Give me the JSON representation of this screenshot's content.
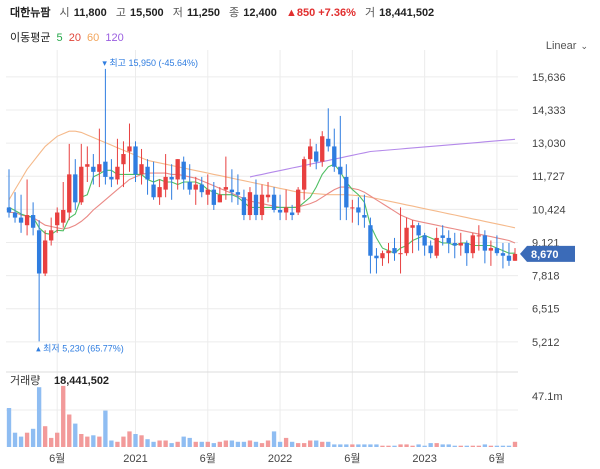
{
  "header": {
    "name": "대한뉴팜",
    "open_label": "시",
    "open": "11,800",
    "high_label": "고",
    "high": "15,500",
    "low_label": "저",
    "low": "11,250",
    "close_label": "종",
    "close": "12,400",
    "change": "▲850 +7.36%",
    "volume_label": "거",
    "volume": "18,441,502"
  },
  "moving_average": {
    "label": "이동평균",
    "periods": [
      {
        "name": "5",
        "color": "#26a84a"
      },
      {
        "name": "20",
        "color": "#e0453a"
      },
      {
        "name": "60",
        "color": "#f2a55c"
      },
      {
        "name": "120",
        "color": "#9b5fe0"
      }
    ]
  },
  "scale_mode": "Linear",
  "colors": {
    "up": "#e84040",
    "down": "#2f7de0",
    "vol_up": "#f29a9a",
    "vol_down": "#8fbdf2",
    "current_tag": "#3b6bb8"
  },
  "chart_data": {
    "type": "candlestick",
    "y_ticks": [
      "15,636",
      "14,333",
      "13,030",
      "11,727",
      "10,424",
      "9,121",
      "7,818",
      "6,515",
      "5,212"
    ],
    "y_range": [
      4300,
      16300
    ],
    "x_ticks": [
      "6월",
      "2021",
      "6월",
      "2022",
      "6월",
      "2023",
      "6월"
    ],
    "x_tick_positions": [
      8,
      21,
      33,
      45,
      57,
      69,
      81
    ],
    "current_price": "8,670",
    "annotations": {
      "high": {
        "text": "최고 15,950 (-45.64%)",
        "value": 15950,
        "index": 16
      },
      "low": {
        "text": "최저 5,230 (65.77%)",
        "value": 5230,
        "index": 5
      }
    },
    "candles": [
      [
        10500,
        12000,
        10100,
        10300
      ],
      [
        10300,
        11100,
        9900,
        10100
      ],
      [
        10100,
        11000,
        9500,
        9900
      ],
      [
        9800,
        11600,
        9400,
        10200
      ],
      [
        10200,
        10700,
        9400,
        9700
      ],
      [
        9600,
        10000,
        5230,
        7900
      ],
      [
        7900,
        9600,
        7800,
        9200
      ],
      [
        9200,
        10100,
        9000,
        9600
      ],
      [
        9800,
        10500,
        9500,
        10300
      ],
      [
        9900,
        11500,
        9700,
        10400
      ],
      [
        10300,
        13000,
        10000,
        11800
      ],
      [
        11800,
        12400,
        10400,
        10700
      ],
      [
        10700,
        13000,
        10600,
        12100
      ],
      [
        12100,
        12900,
        11500,
        12200
      ],
      [
        12100,
        12600,
        11400,
        11900
      ],
      [
        11900,
        13600,
        11300,
        12200
      ],
      [
        12300,
        15950,
        11400,
        11700
      ],
      [
        11700,
        12400,
        11300,
        11600
      ],
      [
        11600,
        13200,
        11400,
        12100
      ],
      [
        12200,
        13100,
        11300,
        12600
      ],
      [
        12700,
        13800,
        11900,
        12900
      ],
      [
        12900,
        13100,
        11500,
        11800
      ],
      [
        11800,
        12800,
        11400,
        12200
      ],
      [
        12100,
        12400,
        11000,
        11600
      ],
      [
        11400,
        12300,
        10800,
        10900
      ],
      [
        10900,
        11600,
        10600,
        11300
      ],
      [
        11200,
        12600,
        10900,
        11700
      ],
      [
        11700,
        12200,
        10800,
        11600
      ],
      [
        11600,
        12400,
        11200,
        12400
      ],
      [
        12300,
        12500,
        11200,
        11600
      ],
      [
        11500,
        12200,
        11000,
        11200
      ],
      [
        11200,
        11700,
        10600,
        11400
      ],
      [
        11400,
        11700,
        10900,
        11100
      ],
      [
        11000,
        11800,
        10600,
        11200
      ],
      [
        11200,
        11500,
        10400,
        10600
      ],
      [
        10700,
        11300,
        10700,
        11000
      ],
      [
        11200,
        12500,
        10800,
        11300
      ],
      [
        11200,
        12000,
        10700,
        11100
      ],
      [
        11100,
        11800,
        10600,
        11000
      ],
      [
        10900,
        11200,
        10000,
        10200
      ],
      [
        10200,
        11300,
        10000,
        11100
      ],
      [
        11000,
        11600,
        10000,
        10200
      ],
      [
        10200,
        11400,
        10000,
        11000
      ],
      [
        10900,
        11500,
        10700,
        11000
      ],
      [
        11000,
        11300,
        10300,
        10400
      ],
      [
        10400,
        11000,
        10000,
        10300
      ],
      [
        10300,
        11200,
        10000,
        10500
      ],
      [
        10300,
        10600,
        10000,
        10200
      ],
      [
        10300,
        11300,
        10200,
        11200
      ],
      [
        11200,
        12500,
        10800,
        12400
      ],
      [
        12400,
        13200,
        12100,
        12900
      ],
      [
        12700,
        13000,
        12000,
        12300
      ],
      [
        12300,
        13500,
        12100,
        13300
      ],
      [
        13200,
        14400,
        12700,
        12900
      ],
      [
        12900,
        13600,
        11900,
        12100
      ],
      [
        12100,
        14100,
        10000,
        11800
      ],
      [
        11700,
        12200,
        10000,
        10500
      ],
      [
        10500,
        10800,
        9900,
        10500
      ],
      [
        10500,
        10900,
        9800,
        10300
      ],
      [
        10200,
        11000,
        9700,
        10100
      ],
      [
        9800,
        10100,
        7900,
        8600
      ],
      [
        8600,
        8900,
        7900,
        8500
      ],
      [
        8500,
        8800,
        8200,
        8700
      ],
      [
        8700,
        9100,
        8300,
        8800
      ],
      [
        8900,
        9300,
        8400,
        8700
      ],
      [
        8700,
        10500,
        7900,
        8700
      ],
      [
        8700,
        10100,
        8600,
        9700
      ],
      [
        9700,
        10000,
        8700,
        9800
      ],
      [
        9800,
        9900,
        8800,
        9400
      ],
      [
        9400,
        9500,
        8600,
        9000
      ],
      [
        9000,
        9200,
        8500,
        8700
      ],
      [
        8600,
        9700,
        8500,
        9300
      ],
      [
        9400,
        9800,
        9000,
        9300
      ],
      [
        9300,
        9600,
        8700,
        9100
      ],
      [
        9100,
        9500,
        8500,
        9000
      ],
      [
        9000,
        9500,
        8600,
        9100
      ],
      [
        9100,
        9200,
        8200,
        8700
      ],
      [
        8700,
        9500,
        8500,
        9400
      ],
      [
        9400,
        9800,
        8800,
        9400
      ],
      [
        9400,
        9600,
        8300,
        8800
      ],
      [
        8800,
        9200,
        8200,
        8900
      ],
      [
        8900,
        9400,
        8600,
        8700
      ],
      [
        8700,
        9100,
        8100,
        8600
      ],
      [
        8600,
        9100,
        8200,
        8400
      ],
      [
        8400,
        8900,
        8400,
        8670
      ]
    ],
    "ma5": [
      10500,
      10380,
      10240,
      10160,
      10120,
      9700,
      9480,
      9440,
      9600,
      9580,
      10080,
      10240,
      10900,
      11000,
      11700,
      11820,
      11960,
      11960,
      11800,
      11800,
      11800,
      11800,
      11800,
      11600,
      11500,
      11600,
      11500,
      11500,
      11400,
      11500,
      11500,
      11500,
      11400,
      11200,
      11100,
      11000,
      11000,
      11000,
      10900,
      10700,
      10500,
      10500,
      10500,
      10500,
      10500,
      10500,
      10500,
      10500,
      10500,
      10700,
      10900,
      11300,
      11800,
      12100,
      12200,
      11900,
      11500,
      11200,
      11000,
      10700,
      9800,
      9300,
      8900,
      8800,
      8700,
      8900,
      9000,
      9200,
      9300,
      9400,
      9300,
      9200,
      9100,
      9100,
      9000,
      9100,
      9100,
      9000,
      9000,
      9000,
      9000,
      8900,
      8800,
      8700,
      8700
    ],
    "ma20": [
      10300,
      10300,
      10200,
      10150,
      10100,
      9950,
      9800,
      9750,
      9700,
      9650,
      9700,
      9800,
      9950,
      10150,
      10400,
      10600,
      10800,
      11000,
      11200,
      11400,
      11600,
      11700,
      11800,
      11850,
      11850,
      11850,
      11850,
      11800,
      11800,
      11750,
      11700,
      11650,
      11550,
      11450,
      11350,
      11250,
      11150,
      11050,
      10950,
      10850,
      10750,
      10700,
      10650,
      10600,
      10550,
      10500,
      10500,
      10500,
      10520,
      10580,
      10650,
      10750,
      10900,
      11050,
      11200,
      11300,
      11300,
      11250,
      11200,
      11100,
      10950,
      10800,
      10650,
      10500,
      10350,
      10200,
      10100,
      10000,
      9950,
      9900,
      9850,
      9800,
      9750,
      9700,
      9650,
      9600,
      9550,
      9500,
      9450,
      9400,
      9350,
      9300,
      9250,
      9200,
      9100
    ],
    "ma60": [
      10800,
      11200,
      11600,
      12000,
      12300,
      12600,
      12900,
      13100,
      13300,
      13400,
      13500,
      13500,
      13450,
      13350,
      13250,
      13150,
      13050,
      12950,
      12850,
      12750,
      12650,
      12550,
      12450,
      12350,
      12300,
      12250,
      12200,
      12150,
      12100,
      12050,
      12000,
      11950,
      11900,
      11850,
      11800,
      11750,
      11700,
      11650,
      11600,
      11550,
      11500,
      11450,
      11400,
      11350,
      11300,
      11250,
      11200,
      11150,
      11100,
      11080,
      11060,
      11040,
      11020,
      11000,
      11000,
      11000,
      11000,
      10980,
      10960,
      10940,
      10900,
      10850,
      10800,
      10750,
      10700,
      10650,
      10600,
      10550,
      10500,
      10450,
      10400,
      10350,
      10300,
      10250,
      10200,
      10150,
      10100,
      10050,
      10000,
      9950,
      9900,
      9850,
      9800,
      9750,
      9700
    ],
    "ma120": [
      null,
      null,
      null,
      null,
      null,
      null,
      null,
      null,
      null,
      null,
      null,
      null,
      null,
      null,
      null,
      null,
      null,
      null,
      null,
      null,
      null,
      null,
      null,
      null,
      null,
      null,
      null,
      null,
      null,
      null,
      null,
      null,
      null,
      null,
      null,
      null,
      null,
      null,
      null,
      null,
      11700,
      11750,
      11800,
      11850,
      11900,
      11950,
      12000,
      12050,
      12100,
      12150,
      12200,
      12250,
      12300,
      12350,
      12400,
      12450,
      12500,
      12550,
      12600,
      12650,
      12700,
      12720,
      12740,
      12760,
      12780,
      12800,
      12820,
      12840,
      12860,
      12880,
      12900,
      12920,
      12940,
      12960,
      12980,
      13000,
      13020,
      13040,
      13060,
      13080,
      13100,
      13120,
      13140,
      13160,
      13180
    ],
    "volume": [
      0.3,
      0.11,
      0.08,
      0.11,
      0.14,
      0.46,
      0.16,
      0.07,
      0.11,
      0.47,
      0.25,
      0.18,
      0.1,
      0.08,
      0.09,
      0.08,
      0.28,
      0.05,
      0.04,
      0.08,
      0.12,
      0.1,
      0.09,
      0.06,
      0.04,
      0.05,
      0.05,
      0.03,
      0.04,
      0.08,
      0.07,
      0.04,
      0.04,
      0.04,
      0.03,
      0.04,
      0.05,
      0.05,
      0.04,
      0.04,
      0.05,
      0.04,
      0.03,
      0.05,
      0.12,
      0.04,
      0.07,
      0.04,
      0.03,
      0.03,
      0.05,
      0.05,
      0.04,
      0.04,
      0.02,
      0.02,
      0.02,
      0.02,
      0.02,
      0.02,
      0.02,
      0.02,
      0.01,
      0.01,
      0.01,
      0.02,
      0.02,
      0.01,
      0.02,
      0.01,
      0.03,
      0.03,
      0.02,
      0.02,
      0.01,
      0.01,
      0.01,
      0.01,
      0.01,
      0.02,
      0.01,
      0.01,
      0.01,
      0.01,
      0.04
    ],
    "volume_label": "거래량",
    "volume_value": "18,441,502",
    "volume_axis": "47.1m"
  }
}
